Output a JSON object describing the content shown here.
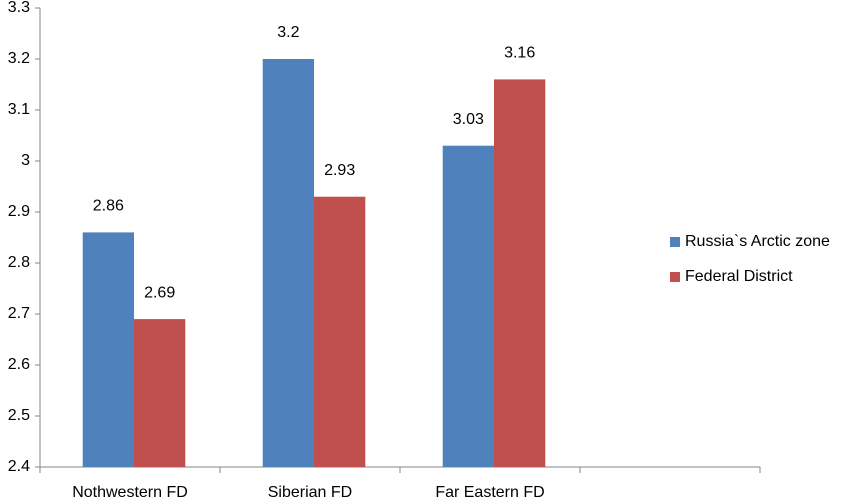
{
  "chart_data": {
    "type": "bar",
    "categories": [
      "Nothwestern FD",
      "Siberian FD",
      "Far Eastern FD",
      null
    ],
    "series": [
      {
        "name": "Russia`s Arctic zone",
        "color": "#4f81bd",
        "values": [
          2.86,
          3.2,
          3.03,
          null
        ]
      },
      {
        "name": "Federal District",
        "color": "#c0504d",
        "values": [
          2.69,
          2.93,
          3.16,
          null
        ]
      }
    ],
    "ylim": [
      2.4,
      3.3
    ],
    "yticks": [
      2.4,
      2.5,
      2.6,
      2.7,
      2.8,
      2.9,
      3,
      3.1,
      3.2,
      3.3
    ],
    "grid": false,
    "legend": "right",
    "data_labels": true
  }
}
